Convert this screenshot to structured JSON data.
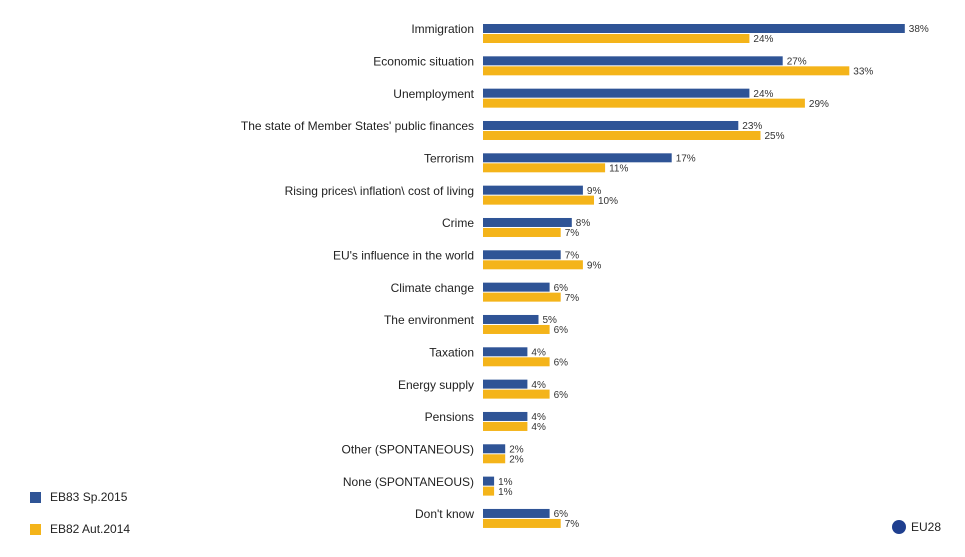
{
  "chart_data": {
    "type": "bar",
    "orientation": "horizontal",
    "categories": [
      "Immigration",
      "Economic situation",
      "Unemployment",
      "The state of Member States' public finances",
      "Terrorism",
      "Rising prices\\ inflation\\ cost of living",
      "Crime",
      "EU's influence in the world",
      "Climate change",
      "The environment",
      "Taxation",
      "Energy supply",
      "Pensions",
      "Other (SPONTANEOUS)",
      "None (SPONTANEOUS)",
      "Don't know"
    ],
    "series": [
      {
        "name": "EB83 Sp.2015",
        "color": "#2f5496",
        "values": [
          38,
          27,
          24,
          23,
          17,
          9,
          8,
          7,
          6,
          5,
          4,
          4,
          4,
          2,
          1,
          6
        ],
        "value_labels": [
          "38%",
          "27%",
          "24%",
          "23%",
          "17%",
          "9%",
          "8%",
          "7%",
          "6%",
          "5%",
          "4%",
          "4%",
          "4%",
          "2%",
          "1%",
          "6%"
        ]
      },
      {
        "name": "EB82 Aut.2014",
        "color": "#f4b41a",
        "values": [
          24,
          33,
          29,
          25,
          11,
          10,
          7,
          9,
          7,
          6,
          6,
          6,
          4,
          2,
          1,
          7
        ],
        "value_labels": [
          "24%",
          "33%",
          "29%",
          "25%",
          "11%",
          "10%",
          "7%",
          "9%",
          "7%",
          "6%",
          "6%",
          "6%",
          "4%",
          "2%",
          "1%",
          "7%"
        ]
      }
    ],
    "legend": "bottom-left",
    "badge": "EU28"
  }
}
